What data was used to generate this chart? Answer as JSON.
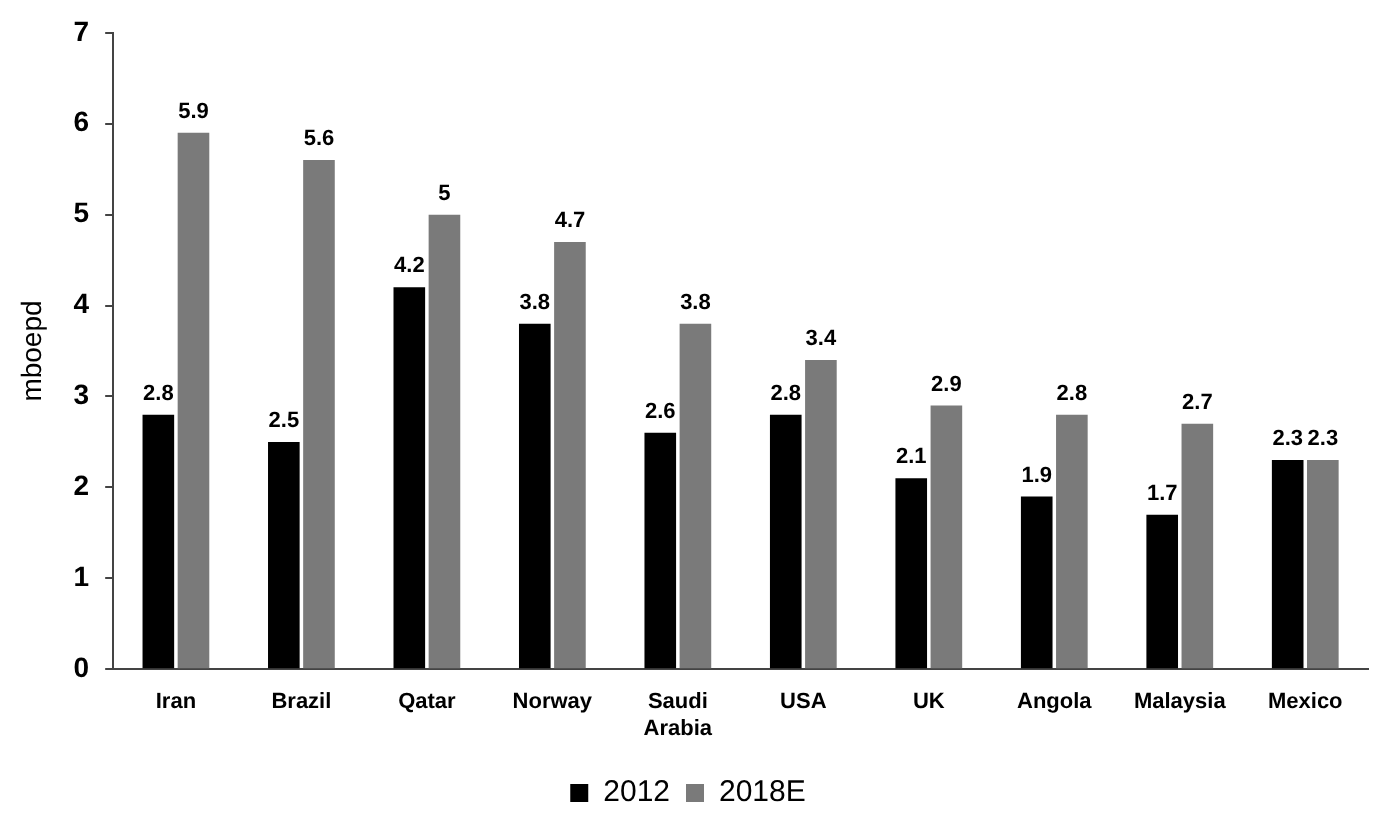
{
  "chart_data": {
    "type": "bar",
    "ylabel": "mboepd",
    "categories": [
      "Iran",
      "Brazil",
      "Qatar",
      "Norway",
      "Saudi Arabia",
      "USA",
      "UK",
      "Angola",
      "Malaysia",
      "Mexico"
    ],
    "series": [
      {
        "name": "2012",
        "color": "#000000",
        "values": [
          2.8,
          2.5,
          4.2,
          3.8,
          2.6,
          2.8,
          2.1,
          1.9,
          1.7,
          2.3
        ]
      },
      {
        "name": "2018E",
        "color": "#7a7a7a",
        "values": [
          5.9,
          5.6,
          5,
          4.7,
          3.8,
          3.4,
          2.9,
          2.8,
          2.7,
          2.3
        ]
      }
    ],
    "ylim": [
      0,
      7
    ],
    "yticks": [
      0,
      1,
      2,
      3,
      4,
      5,
      6,
      7
    ],
    "data_labels": true,
    "legend": "bottom"
  }
}
